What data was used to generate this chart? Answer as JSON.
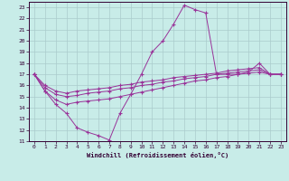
{
  "xlabel": "Windchill (Refroidissement éolien,°C)",
  "bg_color": "#c8ece8",
  "grid_color": "#aacccc",
  "line_color": "#993399",
  "xlim": [
    -0.5,
    23.5
  ],
  "ylim": [
    11,
    23.5
  ],
  "xticks": [
    0,
    1,
    2,
    3,
    4,
    5,
    6,
    7,
    8,
    9,
    10,
    11,
    12,
    13,
    14,
    15,
    16,
    17,
    18,
    19,
    20,
    21,
    22,
    23
  ],
  "yticks": [
    11,
    12,
    13,
    14,
    15,
    16,
    17,
    18,
    19,
    20,
    21,
    22,
    23
  ],
  "series": [
    [
      17.0,
      15.5,
      14.3,
      13.5,
      12.2,
      11.8,
      11.5,
      11.1,
      13.5,
      15.2,
      17.0,
      19.0,
      20.0,
      21.5,
      23.2,
      22.8,
      22.5,
      17.0,
      17.0,
      17.0,
      17.2,
      18.0,
      17.0,
      17.0
    ],
    [
      17.0,
      15.5,
      14.7,
      14.3,
      14.5,
      14.6,
      14.7,
      14.8,
      15.0,
      15.2,
      15.4,
      15.6,
      15.8,
      16.0,
      16.2,
      16.4,
      16.5,
      16.7,
      16.8,
      17.0,
      17.1,
      17.2,
      17.0,
      17.0
    ],
    [
      17.0,
      15.8,
      15.2,
      15.0,
      15.1,
      15.3,
      15.4,
      15.5,
      15.7,
      15.8,
      16.0,
      16.1,
      16.3,
      16.4,
      16.6,
      16.7,
      16.8,
      17.0,
      17.1,
      17.2,
      17.3,
      17.4,
      17.0,
      17.0
    ],
    [
      17.0,
      16.0,
      15.5,
      15.3,
      15.5,
      15.6,
      15.7,
      15.8,
      16.0,
      16.1,
      16.3,
      16.4,
      16.5,
      16.7,
      16.8,
      16.9,
      17.0,
      17.1,
      17.3,
      17.4,
      17.5,
      17.6,
      17.0,
      17.0
    ]
  ]
}
